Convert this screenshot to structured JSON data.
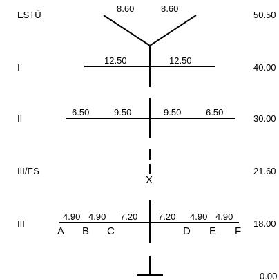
{
  "levels": [
    {
      "name": "ESTÜ",
      "elevation": "50.50"
    },
    {
      "name": "I",
      "elevation": "40.00"
    },
    {
      "name": "II",
      "elevation": "30.00"
    },
    {
      "name": "III/ES",
      "elevation": "21.60"
    },
    {
      "name": "III",
      "elevation": "18.00"
    },
    {
      "name": "",
      "elevation": "0.00"
    }
  ],
  "top": {
    "left": "8.60",
    "right": "8.60"
  },
  "level1": {
    "left": "12.50",
    "right": "12.50"
  },
  "level2": {
    "seg1": "6.50",
    "seg2": "9.50",
    "seg3": "9.50",
    "seg4": "6.50"
  },
  "level3": {
    "seg1": "4.90",
    "seg2": "4.90",
    "seg3": "7.20",
    "seg4": "7.20",
    "seg5": "4.90",
    "seg6": "4.90"
  },
  "mast_mark": "X",
  "points": [
    "A",
    "B",
    "C",
    "D",
    "E",
    "F"
  ],
  "colors": {
    "line": "#000000",
    "background": "#ffffff"
  }
}
